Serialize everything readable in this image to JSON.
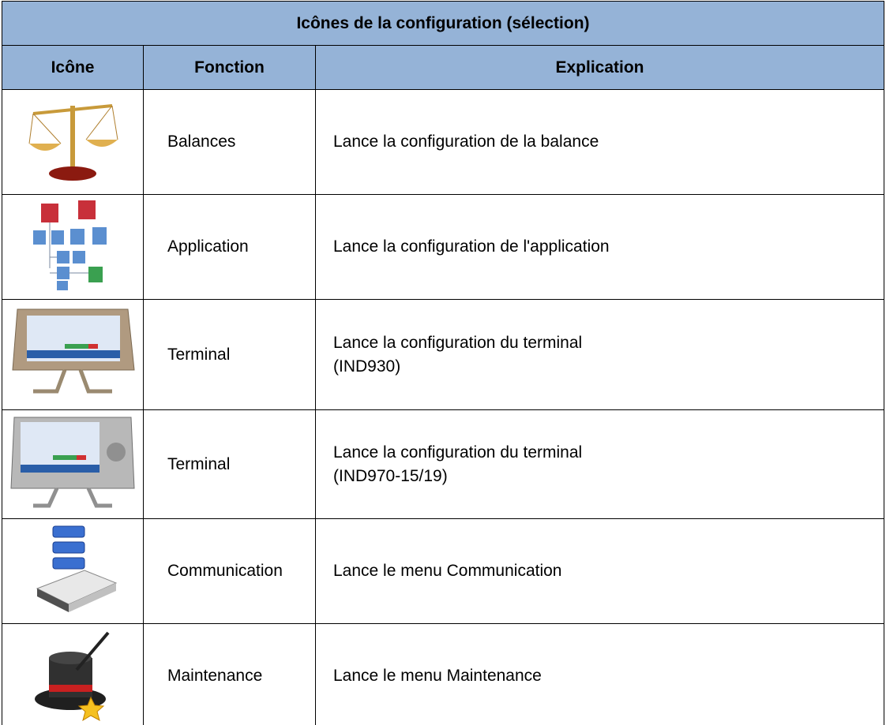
{
  "table": {
    "title": "Icônes de la configuration (sélection)",
    "headers": [
      "Icône",
      "Fonction",
      "Explication"
    ],
    "rows": [
      [
        "Balances",
        [
          "Lance la configuration de la balance"
        ]
      ],
      [
        "Application",
        [
          "Lance la configuration de l'application"
        ]
      ],
      [
        "Terminal",
        [
          "Lance la configuration du terminal",
          "(IND930)"
        ]
      ],
      [
        "Terminal",
        [
          "Lance la configuration du terminal",
          "(IND970-15/19)"
        ]
      ],
      [
        "Communication",
        [
          "Lance le menu Communication"
        ]
      ],
      [
        "Maintenance",
        [
          "Lance le menu Maintenance"
        ]
      ]
    ]
  }
}
